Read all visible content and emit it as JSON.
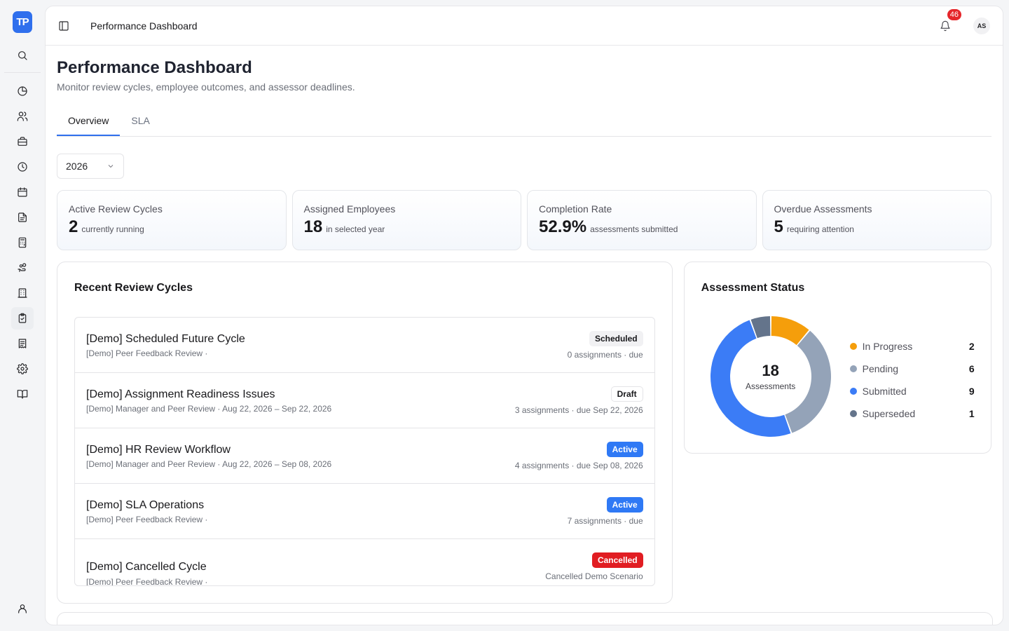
{
  "app": {
    "logo_text": "TP"
  },
  "sidebar": {
    "items": [
      {
        "icon": "pie-chart-icon"
      },
      {
        "icon": "users-icon"
      },
      {
        "icon": "briefcase-icon"
      },
      {
        "icon": "clock-icon"
      },
      {
        "icon": "calendar-icon"
      },
      {
        "icon": "file-text-icon"
      },
      {
        "icon": "calculator-icon"
      },
      {
        "icon": "hand-coins-icon"
      },
      {
        "icon": "building-icon"
      },
      {
        "icon": "clipboard-check-icon"
      },
      {
        "icon": "receipt-icon"
      },
      {
        "icon": "settings-icon"
      },
      {
        "icon": "book-open-icon"
      }
    ],
    "active_index": 9
  },
  "topbar": {
    "title": "Performance Dashboard",
    "notification_count": "46",
    "avatar_initials": "AS"
  },
  "page": {
    "title": "Performance Dashboard",
    "subtitle": "Monitor review cycles, employee outcomes, and assessor deadlines."
  },
  "tabs": [
    {
      "label": "Overview",
      "active": true
    },
    {
      "label": "SLA",
      "active": false
    }
  ],
  "year_select": {
    "value": "2026"
  },
  "stats": [
    {
      "label": "Active Review Cycles",
      "value": "2",
      "desc": "currently running"
    },
    {
      "label": "Assigned Employees",
      "value": "18",
      "desc": "in selected year"
    },
    {
      "label": "Completion Rate",
      "value": "52.9%",
      "desc": "assessments submitted"
    },
    {
      "label": "Overdue Assessments",
      "value": "5",
      "desc": "requiring attention"
    }
  ],
  "recent_cycles": {
    "title": "Recent Review Cycles",
    "items": [
      {
        "name": "[Demo] Scheduled Future Cycle",
        "meta": "[Demo] Peer Feedback Review ·",
        "status": "Scheduled",
        "right": "0 assignments · due"
      },
      {
        "name": "[Demo] Assignment Readiness Issues",
        "meta": "[Demo] Manager and Peer Review · Aug 22, 2026 – Sep 22, 2026",
        "status": "Draft",
        "right": "3 assignments · due Sep 22, 2026"
      },
      {
        "name": "[Demo] HR Review Workflow",
        "meta": "[Demo] Manager and Peer Review · Aug 22, 2026 – Sep 08, 2026",
        "status": "Active",
        "right": "4 assignments · due Sep 08, 2026"
      },
      {
        "name": "[Demo] SLA Operations",
        "meta": "[Demo] Peer Feedback Review ·",
        "status": "Active",
        "right": "7 assignments · due"
      },
      {
        "name": "[Demo] Cancelled Cycle",
        "meta": "[Demo] Peer Feedback Review ·",
        "status": "Cancelled",
        "right": "Cancelled Demo Scenario"
      }
    ]
  },
  "assessment_status": {
    "title": "Assessment Status",
    "total": "18",
    "total_label": "Assessments",
    "legend": [
      {
        "label": "In Progress",
        "value": "2",
        "color": "#f59e0b"
      },
      {
        "label": "Pending",
        "value": "6",
        "color": "#94a3b8"
      },
      {
        "label": "Submitted",
        "value": "9",
        "color": "#3b7cf6"
      },
      {
        "label": "Superseded",
        "value": "1",
        "color": "#64748b"
      }
    ]
  },
  "chart_data": {
    "type": "pie",
    "categories": [
      "In Progress",
      "Pending",
      "Submitted",
      "Superseded"
    ],
    "values": [
      2,
      6,
      9,
      1
    ],
    "colors": [
      "#f59e0b",
      "#94a3b8",
      "#3b7cf6",
      "#64748b"
    ]
  }
}
